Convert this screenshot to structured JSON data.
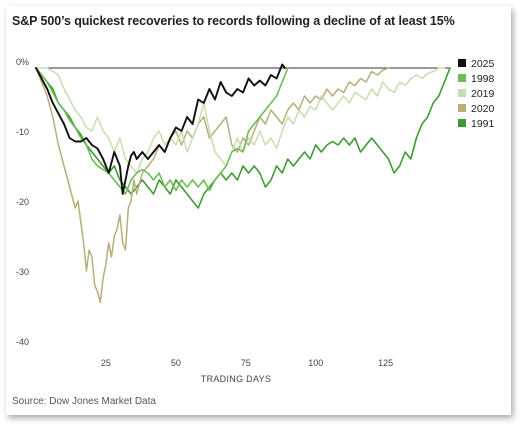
{
  "chart_data": {
    "type": "line",
    "title": "S&P 500’s quickest recoveries to records following a decline of at least 15%",
    "xlabel": "TRADING DAYS",
    "ylabel": "",
    "xlim": [
      0,
      148
    ],
    "ylim": [
      -40,
      0
    ],
    "x_ticks": [
      25,
      50,
      75,
      100,
      125
    ],
    "y_ticks": [
      0,
      -10,
      -20,
      -30,
      -40
    ],
    "y_tick_labels": [
      "0%",
      "-10",
      "-20",
      "-30",
      "-40"
    ],
    "grid": false,
    "legend_position": "right",
    "source": "Source: Dow Jones Market Data",
    "series": [
      {
        "name": "2025",
        "color": "#111111",
        "width": 1.9,
        "x": [
          0,
          2,
          4,
          6,
          8,
          10,
          12,
          14,
          16,
          18,
          20,
          22,
          24,
          26,
          28,
          30,
          31,
          32,
          33,
          34,
          35,
          36,
          38,
          40,
          42,
          44,
          46,
          48,
          50,
          52,
          54,
          56,
          58,
          60,
          62,
          64,
          66,
          68,
          70,
          72,
          74,
          76,
          78,
          80,
          82,
          84,
          86,
          88,
          89
        ],
        "y": [
          0,
          -1.5,
          -3,
          -5,
          -6.5,
          -8,
          -10,
          -10.5,
          -10.5,
          -10,
          -11,
          -11.5,
          -13,
          -15,
          -12,
          -14,
          -18,
          -16,
          -14,
          -12.5,
          -12,
          -13,
          -12,
          -13,
          -12,
          -11,
          -12,
          -10,
          -8.5,
          -9,
          -7,
          -8,
          -4.5,
          -5,
          -3,
          -4.5,
          -2,
          -3.5,
          -4,
          -3,
          -3.5,
          -1.5,
          -2.5,
          -1.8,
          -2.5,
          -1,
          -1.5,
          0.5,
          0
        ]
      },
      {
        "name": "1998",
        "color": "#6cbd55",
        "width": 1.6,
        "x": [
          0,
          2,
          4,
          6,
          8,
          10,
          12,
          14,
          16,
          18,
          20,
          22,
          24,
          26,
          28,
          30,
          32,
          34,
          36,
          38,
          40,
          42,
          44,
          46,
          48,
          50,
          52,
          54,
          56,
          58,
          60,
          62,
          64,
          66,
          68,
          70,
          72,
          74,
          76,
          78,
          80,
          82,
          84,
          86,
          88,
          90
        ],
        "y": [
          0,
          -1,
          -2,
          -3.5,
          -5,
          -6,
          -7.5,
          -8.5,
          -10,
          -11,
          -13,
          -14,
          -14.5,
          -15,
          -16,
          -17,
          -18,
          -16,
          -15,
          -14.5,
          -15,
          -16,
          -15,
          -17,
          -16,
          -17.5,
          -16,
          -17,
          -16,
          -17,
          -16,
          -17.5,
          -16,
          -15,
          -14,
          -12,
          -11.5,
          -12,
          -9,
          -8,
          -7,
          -6,
          -5,
          -4,
          -2,
          0
        ]
      },
      {
        "name": "2019",
        "color": "#c6dfb0",
        "width": 1.5,
        "x": [
          0,
          4,
          8,
          10,
          12,
          14,
          16,
          18,
          20,
          22,
          24,
          26,
          28,
          30,
          32,
          34,
          36,
          38,
          40,
          42,
          44,
          46,
          48,
          50,
          52,
          54,
          56,
          58,
          60,
          62,
          64,
          66,
          68,
          70,
          72,
          74,
          76,
          78,
          80,
          82,
          84,
          86,
          88,
          90,
          92,
          94,
          96,
          98,
          100,
          102,
          104,
          106,
          108,
          110,
          112,
          114,
          116,
          118,
          120,
          122,
          124,
          126,
          128,
          130,
          132,
          134,
          136,
          138,
          140,
          142,
          144,
          146
        ],
        "y": [
          0,
          0,
          -1,
          -3,
          -4.5,
          -6,
          -7,
          -8.5,
          -9,
          -7,
          -9,
          -10,
          -12,
          -10,
          -13,
          -14,
          -15,
          -13,
          -12,
          -10,
          -9,
          -11,
          -10,
          -11,
          -9,
          -12,
          -10,
          -8,
          -5,
          -9,
          -12,
          -13,
          -14,
          -12,
          -10,
          -12,
          -10,
          -11,
          -9,
          -11,
          -10,
          -11.5,
          -9,
          -7,
          -8,
          -6,
          -7,
          -5.5,
          -6,
          -4,
          -5,
          -6,
          -5,
          -4,
          -5,
          -3.5,
          -4,
          -4.5,
          -3,
          -4,
          -2,
          -3,
          -3.5,
          -2,
          -2.5,
          -1.5,
          -1,
          -1.5,
          -0.8,
          -0.5,
          0,
          0
        ]
      },
      {
        "name": "2020",
        "color": "#b8ae7a",
        "width": 1.5,
        "x": [
          0,
          2,
          4,
          6,
          8,
          10,
          12,
          14,
          15,
          16,
          17,
          18,
          19,
          20,
          21,
          22,
          23,
          24,
          25,
          26,
          27,
          28,
          29,
          30,
          31,
          32,
          33,
          34,
          35,
          36,
          38,
          40,
          42,
          44,
          46,
          48,
          50,
          52,
          54,
          56,
          58,
          60,
          62,
          64,
          66,
          68,
          70,
          72,
          74,
          76,
          78,
          80,
          82,
          84,
          86,
          88,
          90,
          92,
          94,
          96,
          98,
          100,
          102,
          104,
          106,
          108,
          110,
          112,
          114,
          116,
          118,
          120,
          122,
          124,
          126
        ],
        "y": [
          0,
          -2,
          -4,
          -7,
          -11,
          -14,
          -17,
          -20,
          -19,
          -22,
          -25,
          -29,
          -26,
          -27,
          -31,
          -32,
          -33.5,
          -30,
          -28,
          -25,
          -27,
          -24,
          -23,
          -21,
          -25,
          -26,
          -20,
          -19,
          -16,
          -18,
          -15,
          -14,
          -13,
          -11,
          -12,
          -10,
          -9,
          -11,
          -9,
          -10,
          -8,
          -7,
          -10,
          -9,
          -8,
          -7,
          -11,
          -12,
          -10,
          -11,
          -9,
          -7,
          -8,
          -6,
          -7,
          -8,
          -6,
          -5,
          -6,
          -4,
          -5,
          -4,
          -4.5,
          -3,
          -4,
          -3,
          -3.5,
          -2,
          -2.5,
          -1.5,
          -2,
          -0.5,
          -1,
          -0.3,
          0
        ]
      },
      {
        "name": "1991",
        "color": "#3e9a33",
        "width": 1.6,
        "x": [
          0,
          2,
          4,
          6,
          8,
          10,
          12,
          14,
          16,
          18,
          20,
          22,
          24,
          26,
          28,
          30,
          32,
          34,
          36,
          38,
          40,
          42,
          44,
          46,
          48,
          50,
          52,
          54,
          56,
          58,
          60,
          62,
          64,
          66,
          68,
          70,
          72,
          74,
          76,
          78,
          80,
          82,
          84,
          86,
          88,
          90,
          92,
          94,
          96,
          98,
          100,
          102,
          104,
          106,
          108,
          110,
          112,
          114,
          116,
          118,
          120,
          122,
          124,
          126,
          128,
          130,
          132,
          134,
          136,
          138,
          140,
          142,
          144,
          146,
          148
        ],
        "y": [
          0,
          -1,
          -2,
          -3,
          -5,
          -6,
          -7,
          -8.5,
          -9.5,
          -11,
          -12,
          -13,
          -14,
          -15,
          -14,
          -16,
          -17,
          -18,
          -17,
          -16,
          -17,
          -18,
          -16,
          -17,
          -18,
          -16,
          -17,
          -18,
          -19,
          -20,
          -18,
          -17,
          -16,
          -15,
          -16,
          -15,
          -16,
          -14,
          -15,
          -14,
          -15,
          -17,
          -16,
          -14,
          -15,
          -13,
          -14,
          -13,
          -12,
          -13,
          -11,
          -12,
          -11,
          -10.5,
          -11,
          -10,
          -11,
          -10,
          -12,
          -11,
          -10,
          -11,
          -12,
          -13,
          -15,
          -14,
          -12,
          -13,
          -10,
          -8,
          -7,
          -5,
          -4,
          -2,
          0
        ]
      }
    ]
  }
}
